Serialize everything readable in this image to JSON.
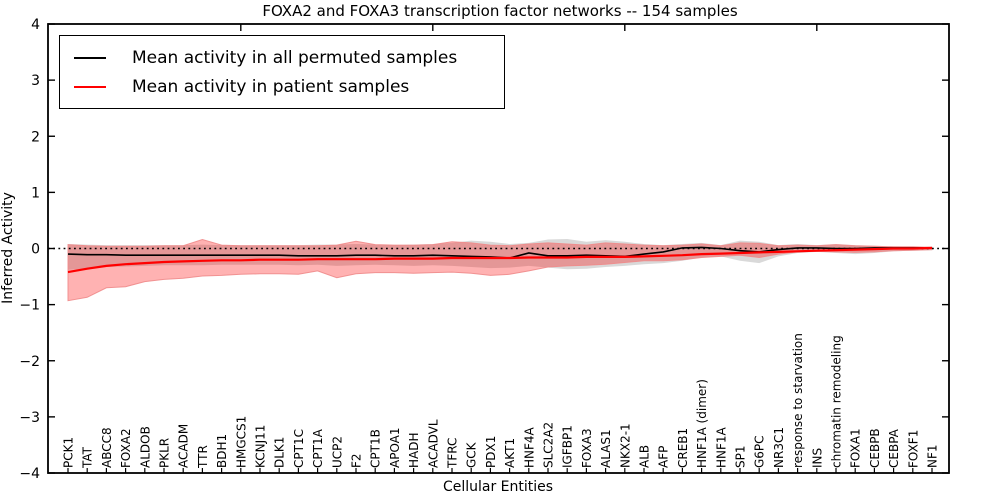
{
  "chart_data": {
    "type": "line",
    "title": "FOXA2 and FOXA3 transcription factor networks -- 154 samples",
    "xlabel": "Cellular Entities",
    "ylabel": "Inferred Activity",
    "ylim": [
      -4,
      4
    ],
    "ytick_labels": [
      "4",
      "3",
      "2",
      "1",
      "0",
      "−1",
      "−2",
      "−3",
      "−4"
    ],
    "ytick_values": [
      4,
      3,
      2,
      1,
      0,
      -1,
      -2,
      -3,
      -4
    ],
    "grid": false,
    "zero_line": {
      "y": 0,
      "style": "dotted",
      "color": "#000000"
    },
    "legend_position": "upper left",
    "top_tick_indices": [
      9,
      19,
      29,
      39
    ],
    "categories": [
      "PCK1",
      "TAT",
      "ABCC8",
      "FOXA2",
      "ALDOB",
      "PKLR",
      "ACADM",
      "TTR",
      "BDH1",
      "HMGCS1",
      "KCNJ11",
      "DLK1",
      "CPT1C",
      "CPT1A",
      "UCP2",
      "F2",
      "CPT1B",
      "APOA1",
      "HADH",
      "ACADVL",
      "TFRC",
      "GCK",
      "PDX1",
      "AKT1",
      "HNF4A",
      "SLC2A2",
      "IGFBP1",
      "FOXA3",
      "ALAS1",
      "NKX2-1",
      "ALB",
      "AFP",
      "CREB1",
      "HNF1A (dimer)",
      "HNF1A",
      "SP1",
      "G6PC",
      "NR3C1",
      "response to starvation",
      "INS",
      "chromatin remodeling",
      "FOXA1",
      "CEBPB",
      "CEBPA",
      "FOXF1",
      "NF1"
    ],
    "series": [
      {
        "name": "Mean activity in all permuted samples",
        "color": "#000000",
        "line_width": 1.6,
        "band_color": "#808080",
        "band_opacity": 0.3,
        "values": [
          -0.1,
          -0.11,
          -0.11,
          -0.12,
          -0.12,
          -0.12,
          -0.12,
          -0.12,
          -0.12,
          -0.12,
          -0.12,
          -0.12,
          -0.13,
          -0.13,
          -0.13,
          -0.12,
          -0.12,
          -0.13,
          -0.13,
          -0.12,
          -0.13,
          -0.14,
          -0.15,
          -0.17,
          -0.08,
          -0.13,
          -0.13,
          -0.12,
          -0.13,
          -0.14,
          -0.1,
          -0.06,
          0.01,
          0.02,
          0.0,
          -0.04,
          -0.06,
          -0.02,
          0.01,
          0.01,
          0.0,
          0.0,
          0.01,
          0.01,
          0.01,
          0.01
        ],
        "band_upper": [
          0.08,
          0.07,
          0.06,
          0.06,
          0.06,
          0.06,
          0.06,
          0.07,
          0.06,
          0.06,
          0.06,
          0.06,
          0.06,
          0.07,
          0.07,
          0.08,
          0.07,
          0.06,
          0.07,
          0.08,
          0.1,
          0.14,
          0.12,
          0.08,
          0.1,
          0.16,
          0.17,
          0.12,
          0.15,
          0.12,
          0.08,
          0.06,
          0.08,
          0.1,
          0.06,
          0.14,
          0.12,
          0.06,
          0.08,
          0.06,
          0.08,
          0.06,
          0.05,
          0.04,
          0.03,
          0.02
        ],
        "band_lower": [
          -0.38,
          -0.36,
          -0.33,
          -0.32,
          -0.31,
          -0.3,
          -0.3,
          -0.3,
          -0.29,
          -0.29,
          -0.29,
          -0.29,
          -0.3,
          -0.29,
          -0.31,
          -0.3,
          -0.29,
          -0.3,
          -0.31,
          -0.3,
          -0.31,
          -0.33,
          -0.35,
          -0.34,
          -0.31,
          -0.34,
          -0.37,
          -0.36,
          -0.33,
          -0.31,
          -0.28,
          -0.26,
          -0.22,
          -0.16,
          -0.14,
          -0.22,
          -0.26,
          -0.14,
          -0.08,
          -0.06,
          -0.08,
          -0.1,
          -0.08,
          -0.05,
          -0.04,
          -0.03
        ]
      },
      {
        "name": "Mean activity in patient samples",
        "color": "#ff0000",
        "line_width": 2.2,
        "band_color": "#ff0000",
        "band_opacity": 0.3,
        "band_edge_color": "#ef8a8a",
        "values": [
          -0.42,
          -0.36,
          -0.31,
          -0.28,
          -0.26,
          -0.24,
          -0.23,
          -0.22,
          -0.21,
          -0.21,
          -0.2,
          -0.2,
          -0.2,
          -0.19,
          -0.19,
          -0.19,
          -0.19,
          -0.18,
          -0.18,
          -0.18,
          -0.17,
          -0.17,
          -0.17,
          -0.17,
          -0.16,
          -0.16,
          -0.16,
          -0.15,
          -0.15,
          -0.15,
          -0.14,
          -0.13,
          -0.12,
          -0.1,
          -0.09,
          -0.08,
          -0.07,
          -0.06,
          -0.05,
          -0.04,
          -0.03,
          -0.02,
          -0.01,
          0.0,
          0.0,
          0.01
        ],
        "band_upper": [
          0.07,
          0.05,
          0.04,
          0.04,
          0.04,
          0.05,
          0.05,
          0.16,
          0.06,
          0.05,
          0.05,
          0.05,
          0.05,
          0.05,
          0.06,
          0.13,
          0.07,
          0.06,
          0.06,
          0.07,
          0.12,
          0.1,
          0.06,
          0.05,
          0.08,
          0.1,
          0.08,
          0.06,
          0.1,
          0.08,
          0.06,
          0.05,
          0.06,
          0.08,
          0.05,
          0.1,
          0.09,
          0.05,
          0.06,
          0.05,
          0.07,
          0.05,
          0.04,
          0.03,
          0.03,
          0.02
        ],
        "band_lower": [
          -0.93,
          -0.87,
          -0.7,
          -0.68,
          -0.59,
          -0.55,
          -0.53,
          -0.49,
          -0.48,
          -0.46,
          -0.45,
          -0.45,
          -0.46,
          -0.4,
          -0.52,
          -0.45,
          -0.43,
          -0.43,
          -0.44,
          -0.43,
          -0.42,
          -0.44,
          -0.48,
          -0.46,
          -0.4,
          -0.33,
          -0.31,
          -0.3,
          -0.28,
          -0.25,
          -0.22,
          -0.22,
          -0.2,
          -0.16,
          -0.14,
          -0.12,
          -0.16,
          -0.1,
          -0.06,
          -0.05,
          -0.06,
          -0.07,
          -0.06,
          -0.04,
          -0.03,
          -0.02
        ]
      }
    ],
    "legend": [
      {
        "label": "Mean activity in all permuted samples",
        "color": "#000000"
      },
      {
        "label": "Mean activity in patient samples",
        "color": "#ff0000"
      }
    ]
  }
}
